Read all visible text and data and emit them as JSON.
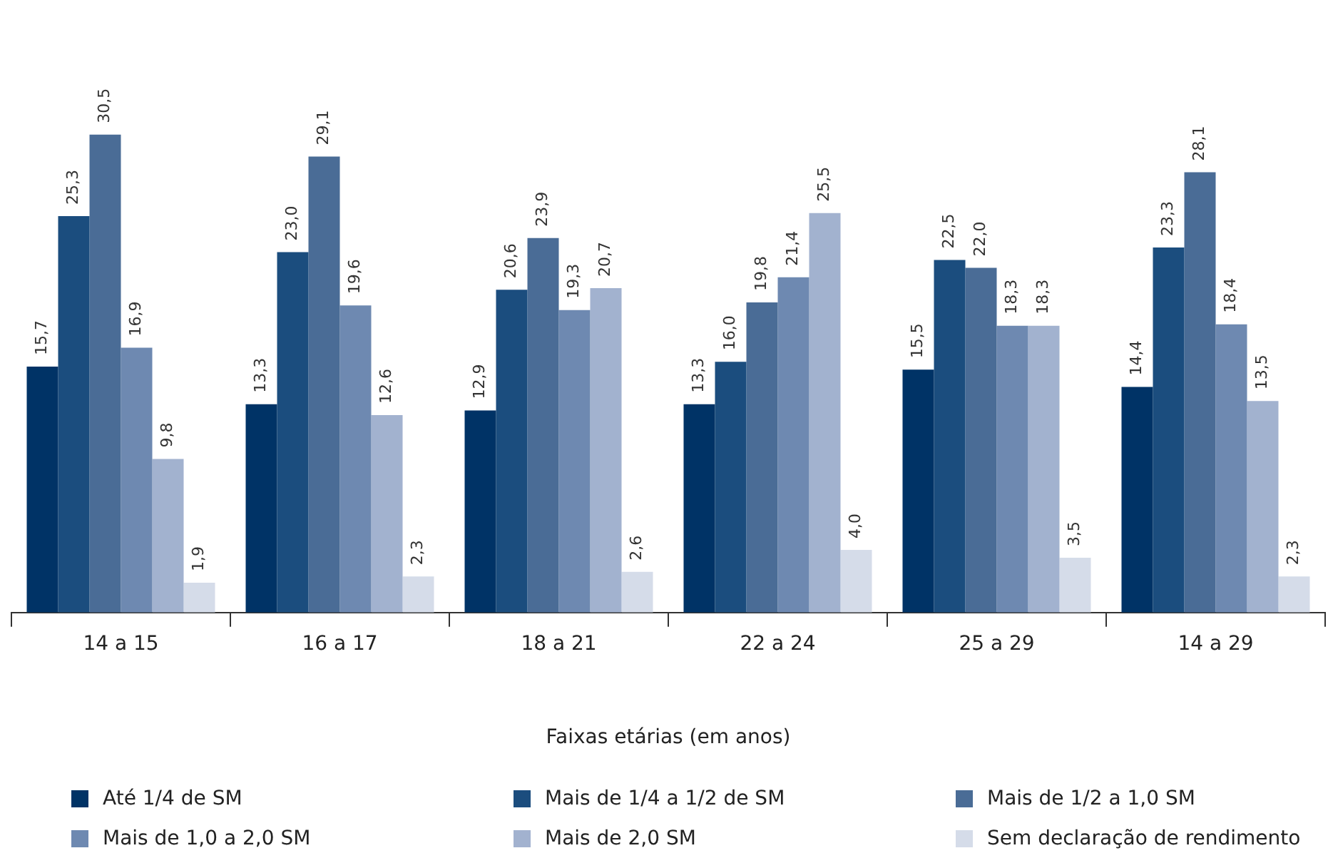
{
  "chart_data": {
    "type": "bar",
    "xlabel": "Faixas etárias (em anos)",
    "categories": [
      "14 a 15",
      "16 a 17",
      "18 a 21",
      "22 a 24",
      "25 a 29",
      "14 a 29"
    ],
    "series": [
      {
        "name": "Até 1/4 de SM",
        "color": "#003366",
        "values": [
          15.7,
          13.3,
          12.9,
          13.3,
          15.5,
          14.4
        ],
        "value_labels": [
          "15,7",
          "13,3",
          "12,9",
          "13,3",
          "15,5",
          "14,4"
        ]
      },
      {
        "name": "Mais de 1/4 a 1/2 de SM",
        "color": "#1b4d7e",
        "values": [
          25.3,
          23.0,
          20.6,
          16.0,
          22.5,
          23.3
        ],
        "value_labels": [
          "25,3",
          "23,0",
          "20,6",
          "16,0",
          "22,5",
          "23,3"
        ]
      },
      {
        "name": "Mais de 1/2 a 1,0 SM",
        "color": "#4a6c96",
        "values": [
          30.5,
          29.1,
          23.9,
          19.8,
          22.0,
          28.1
        ],
        "value_labels": [
          "30,5",
          "29,1",
          "23,9",
          "19,8",
          "22,0",
          "28,1"
        ]
      },
      {
        "name": "Mais de 1,0 a 2,0 SM",
        "color": "#6e89b1",
        "values": [
          16.9,
          19.6,
          19.3,
          21.4,
          18.3,
          18.4
        ],
        "value_labels": [
          "16,9",
          "19,6",
          "19,3",
          "21,4",
          "18,3",
          "18,4"
        ]
      },
      {
        "name": "Mais de 2,0 SM",
        "color": "#a2b2cf",
        "values": [
          9.8,
          12.6,
          20.7,
          25.5,
          18.3,
          13.5
        ],
        "value_labels": [
          "9,8",
          "12,6",
          "20,7",
          "25,5",
          "18,3",
          "13,5"
        ]
      },
      {
        "name": "Sem declaração de rendimento",
        "color": "#d5dce9",
        "values": [
          1.9,
          2.3,
          2.6,
          4.0,
          3.5,
          2.3
        ],
        "value_labels": [
          "1,9",
          "2,3",
          "2,6",
          "4,0",
          "3,5",
          "2,3"
        ]
      }
    ],
    "legend": "bottom",
    "grid": false
  }
}
